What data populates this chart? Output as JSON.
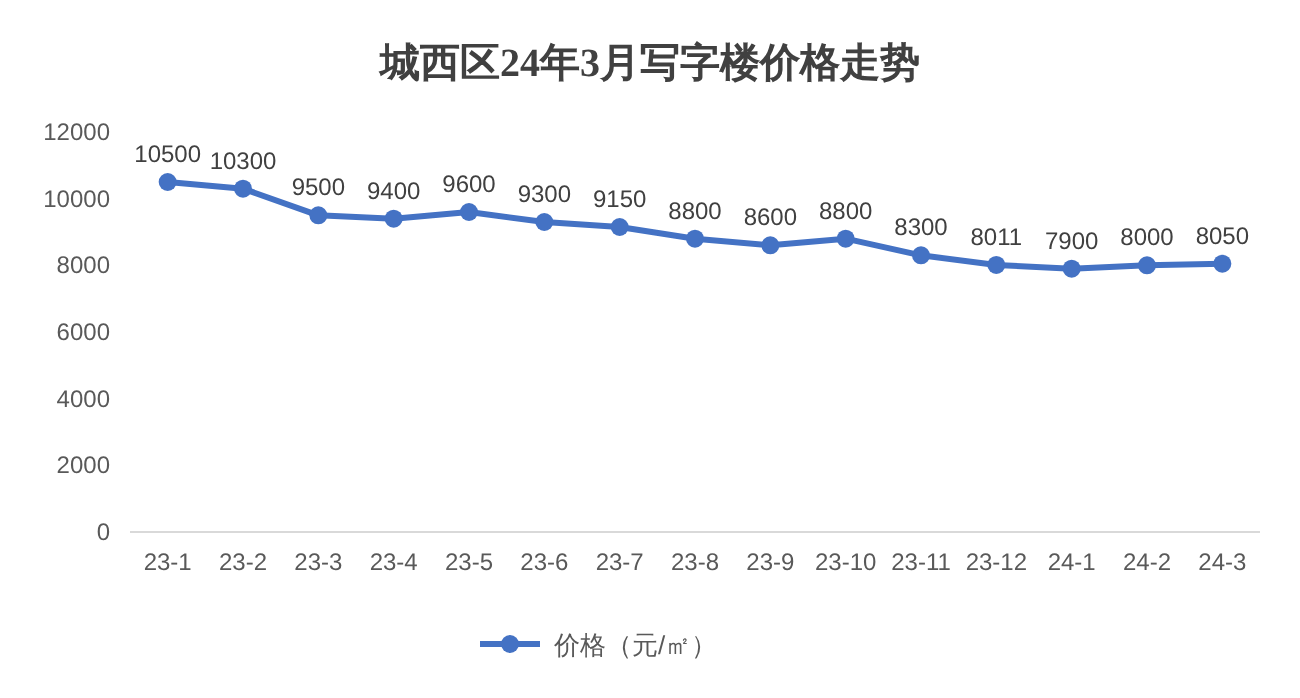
{
  "chart_data": {
    "type": "line",
    "title": "城西区24年3月写字楼价格走势",
    "categories": [
      "23-1",
      "23-2",
      "23-3",
      "23-4",
      "23-5",
      "23-6",
      "23-7",
      "23-8",
      "23-9",
      "23-10",
      "23-11",
      "23-12",
      "24-1",
      "24-2",
      "24-3"
    ],
    "series": [
      {
        "name": "价格（元/㎡）",
        "color": "#4472c4",
        "values": [
          10500,
          10300,
          9500,
          9400,
          9600,
          9300,
          9150,
          8800,
          8600,
          8800,
          8300,
          8011,
          7900,
          8000,
          8050
        ]
      }
    ],
    "ylim": [
      0,
      12000
    ],
    "yticks": [
      0,
      2000,
      4000,
      6000,
      8000,
      10000,
      12000
    ],
    "data_labels": true,
    "legend": "bottom",
    "marker": "circle",
    "line_style": "solid"
  }
}
